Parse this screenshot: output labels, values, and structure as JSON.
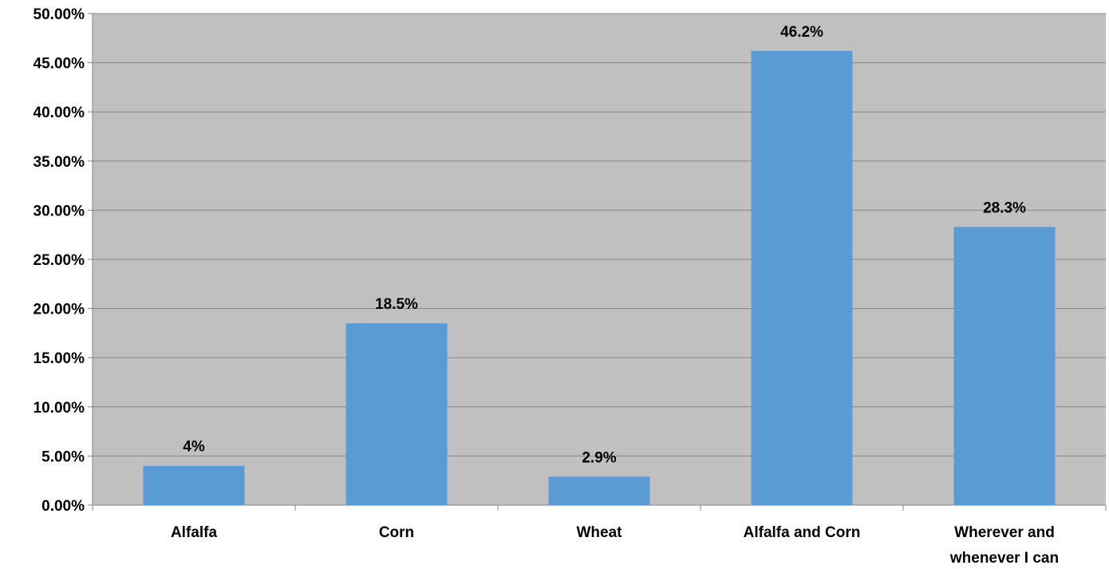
{
  "chart_data": {
    "type": "bar",
    "categories": [
      "Alfalfa",
      "Corn",
      "Wheat",
      "Alfalfa and Corn",
      "Wherever and whenever I can"
    ],
    "category_lines": [
      [
        "Alfalfa"
      ],
      [
        "Corn"
      ],
      [
        "Wheat"
      ],
      [
        "Alfalfa and Corn"
      ],
      [
        "Wherever and",
        "whenever I can"
      ]
    ],
    "values": [
      4.0,
      18.5,
      2.9,
      46.2,
      28.3
    ],
    "data_labels": [
      "4%",
      "18.5%",
      "2.9%",
      "46.2%",
      "28.3%"
    ],
    "ylim": [
      0,
      50
    ],
    "yticks": [
      0,
      5,
      10,
      15,
      20,
      25,
      30,
      35,
      40,
      45,
      50
    ],
    "ytick_labels": [
      "0.00%",
      "5.00%",
      "10.00%",
      "15.00%",
      "20.00%",
      "25.00%",
      "30.00%",
      "35.00%",
      "40.00%",
      "45.00%",
      "50.00%"
    ],
    "title": "",
    "xlabel": "",
    "ylabel": "",
    "grid": true,
    "legend": "none",
    "colors": {
      "bar": "#5B9BD5",
      "plot_background": "#C0C0C0",
      "gridline": "#868686",
      "axis": "#868686",
      "text": "#000000"
    }
  }
}
